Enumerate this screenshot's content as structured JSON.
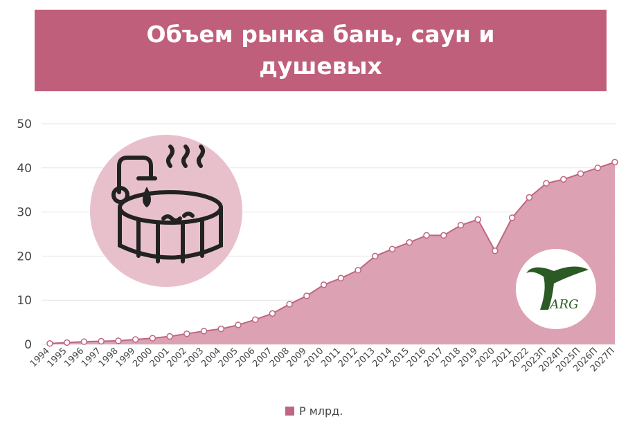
{
  "chart_data": {
    "type": "area",
    "title": "Объем рынка бань, саун и душевых",
    "categories": [
      "1994",
      "1995",
      "1996",
      "1997",
      "1998",
      "1999",
      "2000",
      "2001",
      "2002",
      "2003",
      "2004",
      "2005",
      "2006",
      "2007",
      "2008",
      "2009",
      "2010",
      "2011",
      "2012",
      "2013",
      "2014",
      "2015",
      "2016",
      "2017",
      "2018",
      "2019",
      "2020",
      "2021",
      "2022",
      "2023П",
      "2024П",
      "2025П",
      "2026П",
      "2027П"
    ],
    "series": [
      {
        "name": "Р млрд.",
        "color": "#bf6580",
        "fill": "#dca2b3",
        "values": [
          0.2,
          0.4,
          0.6,
          0.7,
          0.8,
          1.1,
          1.4,
          1.8,
          2.4,
          3.0,
          3.5,
          4.4,
          5.6,
          7.0,
          9.1,
          11.0,
          13.5,
          15.0,
          16.8,
          20.0,
          21.6,
          23.1,
          24.7,
          24.7,
          27.0,
          28.3,
          21.2,
          28.7,
          33.3,
          36.5,
          37.4,
          38.7,
          40.0,
          41.3
        ]
      }
    ],
    "ylim": [
      0,
      50
    ],
    "yticks": [
      0,
      10,
      20,
      30,
      40,
      50
    ],
    "grid": true,
    "legend": "bottom",
    "logo_text": "ARG"
  }
}
